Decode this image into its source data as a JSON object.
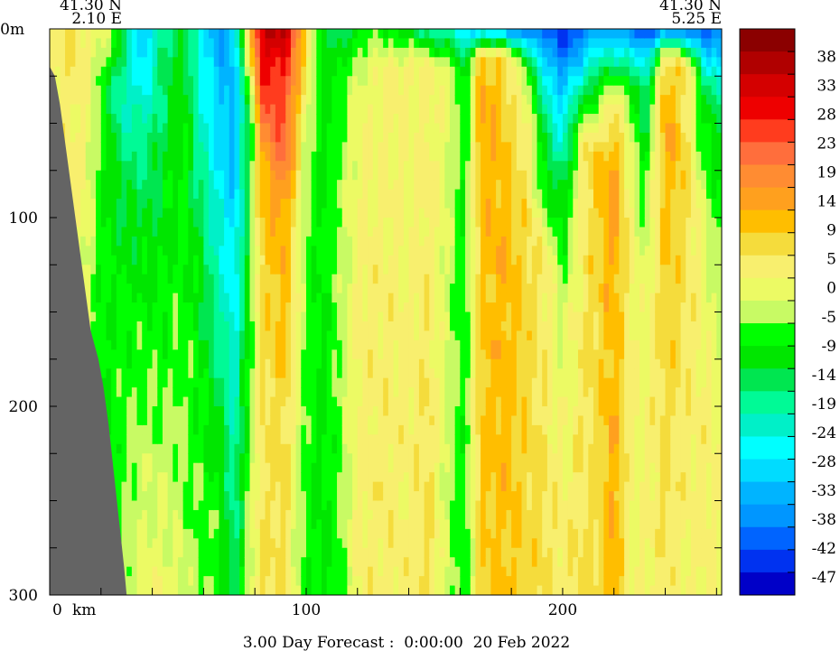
{
  "chart_data": {
    "type": "heatmap",
    "title": "",
    "xlabel": "",
    "ylabel": "",
    "x_unit_label": "km",
    "y_unit_label": "m",
    "xlim": [
      0,
      262
    ],
    "ylim": [
      0,
      300
    ],
    "x_ticks": [
      {
        "value": 0,
        "label": "0"
      },
      {
        "value": 100,
        "label": "100"
      },
      {
        "value": 200,
        "label": "200"
      }
    ],
    "y_ticks": [
      {
        "value": 0,
        "label": "0"
      },
      {
        "value": 100,
        "label": "100"
      },
      {
        "value": 200,
        "label": "200"
      },
      {
        "value": 300,
        "label": "300"
      }
    ],
    "endpoints": {
      "start": {
        "lat": "41.30 N",
        "lon": "2.10 E"
      },
      "end": {
        "lat": "41.30 N",
        "lon": "5.25 E"
      }
    },
    "footer": "3.00 Day Forecast :  0:00:00  20 Feb 2022",
    "colorbar": {
      "labels": [
        "38",
        "33",
        "28",
        "23",
        "19",
        "14",
        "9",
        "5",
        "0",
        "-5",
        "-9",
        "-14",
        "-19",
        "-24",
        "-28",
        "-33",
        "-38",
        "-42",
        "-47"
      ],
      "colors": [
        "#8b0000",
        "#b00000",
        "#d40000",
        "#ee0000",
        "#ff3c1e",
        "#ff6e3c",
        "#ff8c32",
        "#ffa01e",
        "#ffbe00",
        "#f5dc3c",
        "#f8ef6e",
        "#ecfa64",
        "#c8fa64",
        "#00ff00",
        "#00e600",
        "#00e650",
        "#00fa96",
        "#00f0c8",
        "#00ffff",
        "#00dcff",
        "#00b4ff",
        "#0096ff",
        "#0064ff",
        "#0032f0",
        "#0000c8"
      ]
    },
    "bathymetry": [
      {
        "x": 0,
        "depth": 20
      },
      {
        "x": 2,
        "depth": 25
      },
      {
        "x": 4,
        "depth": 40
      },
      {
        "x": 6,
        "depth": 60
      },
      {
        "x": 8,
        "depth": 80
      },
      {
        "x": 10,
        "depth": 100
      },
      {
        "x": 13,
        "depth": 130
      },
      {
        "x": 16,
        "depth": 160
      },
      {
        "x": 19,
        "depth": 175
      },
      {
        "x": 21,
        "depth": 190
      },
      {
        "x": 23,
        "depth": 210
      },
      {
        "x": 25,
        "depth": 235
      },
      {
        "x": 27,
        "depth": 260
      },
      {
        "x": 29,
        "depth": 285
      },
      {
        "x": 30,
        "depth": 300
      }
    ],
    "value_columns": [
      {
        "x": 0,
        "profile": [
          [
            0,
            3
          ],
          [
            300,
            3
          ]
        ]
      },
      {
        "x": 8,
        "profile": [
          [
            0,
            5
          ],
          [
            40,
            4
          ],
          [
            300,
            4
          ]
        ]
      },
      {
        "x": 14,
        "profile": [
          [
            0,
            3
          ],
          [
            40,
            2
          ],
          [
            100,
            0
          ],
          [
            300,
            -6
          ]
        ]
      },
      {
        "x": 20,
        "profile": [
          [
            0,
            0
          ],
          [
            30,
            -6
          ],
          [
            100,
            -8
          ],
          [
            200,
            -10
          ],
          [
            300,
            -10
          ]
        ]
      },
      {
        "x": 28,
        "profile": [
          [
            0,
            -10
          ],
          [
            30,
            -22
          ],
          [
            80,
            -14
          ],
          [
            150,
            -8
          ],
          [
            250,
            -6
          ],
          [
            300,
            -4
          ]
        ]
      },
      {
        "x": 36,
        "profile": [
          [
            0,
            -35
          ],
          [
            20,
            -28
          ],
          [
            60,
            -18
          ],
          [
            130,
            -10
          ],
          [
            220,
            -4
          ],
          [
            300,
            0
          ]
        ]
      },
      {
        "x": 44,
        "profile": [
          [
            0,
            -18
          ],
          [
            40,
            -16
          ],
          [
            80,
            -12
          ],
          [
            160,
            -8
          ],
          [
            250,
            -2
          ],
          [
            300,
            2
          ]
        ]
      },
      {
        "x": 52,
        "profile": [
          [
            0,
            -12
          ],
          [
            60,
            -8
          ],
          [
            100,
            -8
          ],
          [
            160,
            -6
          ],
          [
            250,
            -4
          ],
          [
            300,
            -2
          ]
        ]
      },
      {
        "x": 58,
        "profile": [
          [
            0,
            -25
          ],
          [
            50,
            -20
          ],
          [
            120,
            -12
          ],
          [
            200,
            -8
          ],
          [
            300,
            -6
          ]
        ]
      },
      {
        "x": 66,
        "profile": [
          [
            0,
            -35
          ],
          [
            60,
            -30
          ],
          [
            120,
            -22
          ],
          [
            180,
            -16
          ],
          [
            250,
            -8
          ],
          [
            300,
            -6
          ]
        ]
      },
      {
        "x": 72,
        "profile": [
          [
            0,
            -30
          ],
          [
            60,
            -34
          ],
          [
            120,
            -28
          ],
          [
            200,
            -22
          ],
          [
            300,
            -16
          ]
        ]
      },
      {
        "x": 78,
        "profile": [
          [
            0,
            10
          ],
          [
            40,
            -10
          ],
          [
            120,
            -10
          ],
          [
            200,
            -6
          ],
          [
            300,
            -2
          ]
        ]
      },
      {
        "x": 82,
        "profile": [
          [
            0,
            33
          ],
          [
            30,
            25
          ],
          [
            70,
            10
          ],
          [
            150,
            6
          ],
          [
            250,
            4
          ],
          [
            300,
            6
          ]
        ]
      },
      {
        "x": 86,
        "profile": [
          [
            0,
            36
          ],
          [
            20,
            30
          ],
          [
            60,
            20
          ],
          [
            110,
            10
          ],
          [
            200,
            6
          ],
          [
            300,
            6
          ]
        ]
      },
      {
        "x": 92,
        "profile": [
          [
            0,
            36
          ],
          [
            15,
            28
          ],
          [
            60,
            22
          ],
          [
            100,
            14
          ],
          [
            200,
            8
          ],
          [
            300,
            4
          ]
        ]
      },
      {
        "x": 100,
        "profile": [
          [
            0,
            10
          ],
          [
            40,
            0
          ],
          [
            90,
            -6
          ],
          [
            150,
            -6
          ],
          [
            250,
            -8
          ],
          [
            300,
            -8
          ]
        ]
      },
      {
        "x": 106,
        "profile": [
          [
            0,
            -12
          ],
          [
            50,
            -10
          ],
          [
            120,
            -10
          ],
          [
            220,
            -10
          ],
          [
            300,
            -10
          ]
        ]
      },
      {
        "x": 112,
        "profile": [
          [
            0,
            -16
          ],
          [
            40,
            -8
          ],
          [
            120,
            -5
          ],
          [
            300,
            -8
          ]
        ]
      },
      {
        "x": 120,
        "profile": [
          [
            0,
            -10
          ],
          [
            30,
            0
          ],
          [
            100,
            2
          ],
          [
            200,
            3
          ],
          [
            300,
            2
          ]
        ]
      },
      {
        "x": 130,
        "profile": [
          [
            0,
            -8
          ],
          [
            20,
            2
          ],
          [
            100,
            3
          ],
          [
            200,
            4
          ],
          [
            300,
            4
          ]
        ]
      },
      {
        "x": 140,
        "profile": [
          [
            0,
            -14
          ],
          [
            20,
            3
          ],
          [
            80,
            1
          ],
          [
            200,
            3
          ],
          [
            300,
            3
          ]
        ]
      },
      {
        "x": 148,
        "profile": [
          [
            0,
            -20
          ],
          [
            20,
            2
          ],
          [
            100,
            4
          ],
          [
            200,
            6
          ],
          [
            300,
            6
          ]
        ]
      },
      {
        "x": 156,
        "profile": [
          [
            0,
            -22
          ],
          [
            20,
            0
          ],
          [
            80,
            -2
          ],
          [
            150,
            -4
          ],
          [
            250,
            -4
          ],
          [
            300,
            -4
          ]
        ]
      },
      {
        "x": 162,
        "profile": [
          [
            0,
            -30
          ],
          [
            30,
            -10
          ],
          [
            100,
            -9
          ],
          [
            200,
            -8
          ],
          [
            300,
            -10
          ]
        ]
      },
      {
        "x": 168,
        "profile": [
          [
            0,
            -30
          ],
          [
            15,
            10
          ],
          [
            40,
            14
          ],
          [
            120,
            10
          ],
          [
            300,
            9
          ]
        ]
      },
      {
        "x": 176,
        "profile": [
          [
            0,
            -35
          ],
          [
            15,
            8
          ],
          [
            40,
            10
          ],
          [
            120,
            12
          ],
          [
            300,
            10
          ]
        ]
      },
      {
        "x": 186,
        "profile": [
          [
            0,
            -40
          ],
          [
            20,
            -6
          ],
          [
            60,
            4
          ],
          [
            120,
            8
          ],
          [
            300,
            8
          ]
        ]
      },
      {
        "x": 194,
        "profile": [
          [
            0,
            -42
          ],
          [
            40,
            -20
          ],
          [
            80,
            -12
          ],
          [
            120,
            3
          ],
          [
            300,
            6
          ]
        ]
      },
      {
        "x": 200,
        "profile": [
          [
            0,
            -45
          ],
          [
            40,
            -30
          ],
          [
            80,
            -16
          ],
          [
            140,
            -4
          ],
          [
            300,
            5
          ]
        ]
      },
      {
        "x": 208,
        "profile": [
          [
            0,
            -42
          ],
          [
            30,
            -18
          ],
          [
            60,
            4
          ],
          [
            140,
            5
          ],
          [
            300,
            6
          ]
        ]
      },
      {
        "x": 214,
        "profile": [
          [
            0,
            -35
          ],
          [
            30,
            -10
          ],
          [
            70,
            10
          ],
          [
            150,
            8
          ],
          [
            300,
            6
          ]
        ]
      },
      {
        "x": 220,
        "profile": [
          [
            0,
            -35
          ],
          [
            40,
            5
          ],
          [
            80,
            16
          ],
          [
            160,
            12
          ],
          [
            300,
            14
          ]
        ]
      },
      {
        "x": 226,
        "profile": [
          [
            0,
            -40
          ],
          [
            30,
            -6
          ],
          [
            100,
            4
          ],
          [
            200,
            3
          ],
          [
            300,
            1
          ]
        ]
      },
      {
        "x": 232,
        "profile": [
          [
            0,
            -42
          ],
          [
            30,
            -20
          ],
          [
            80,
            -8
          ],
          [
            150,
            0
          ],
          [
            300,
            2
          ]
        ]
      },
      {
        "x": 240,
        "profile": [
          [
            0,
            -40
          ],
          [
            15,
            8
          ],
          [
            40,
            14
          ],
          [
            120,
            10
          ],
          [
            300,
            4
          ]
        ]
      },
      {
        "x": 248,
        "profile": [
          [
            0,
            -40
          ],
          [
            20,
            6
          ],
          [
            80,
            8
          ],
          [
            200,
            4
          ],
          [
            300,
            2
          ]
        ]
      },
      {
        "x": 256,
        "profile": [
          [
            0,
            -42
          ],
          [
            30,
            -16
          ],
          [
            100,
            -2
          ],
          [
            200,
            3
          ],
          [
            300,
            3
          ]
        ]
      },
      {
        "x": 262,
        "profile": [
          [
            0,
            -42
          ],
          [
            40,
            -14
          ],
          [
            100,
            -8
          ],
          [
            200,
            0
          ],
          [
            300,
            2
          ]
        ]
      }
    ]
  }
}
